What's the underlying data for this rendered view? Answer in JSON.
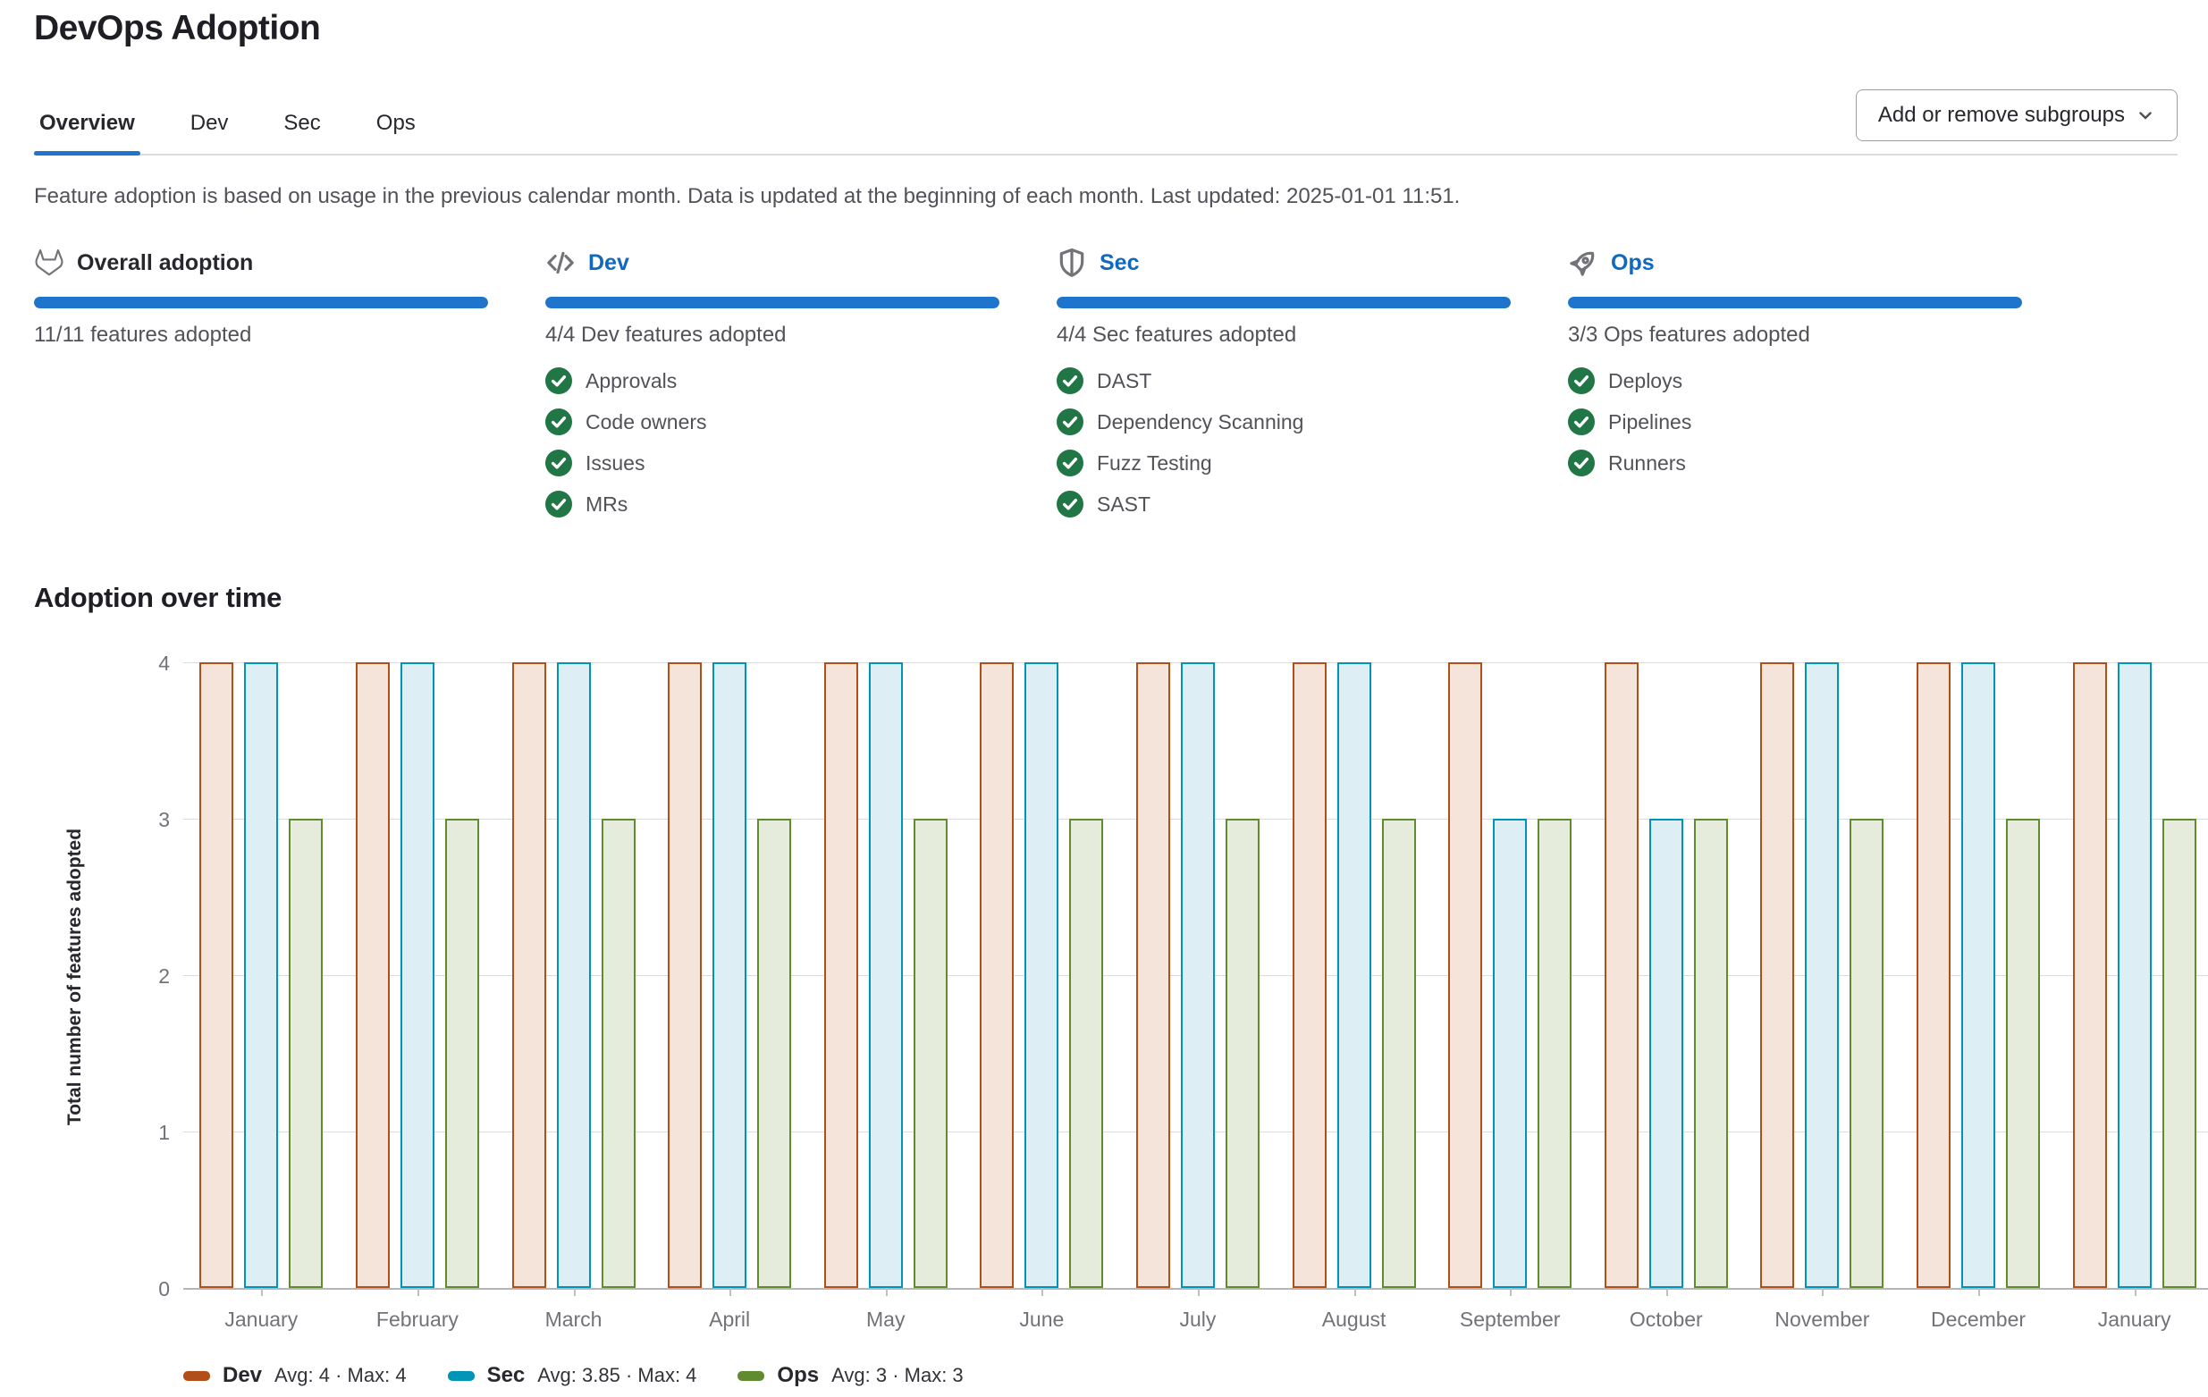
{
  "page": {
    "title": "DevOps Adoption"
  },
  "tabs": [
    {
      "label": "Overview",
      "active": true
    },
    {
      "label": "Dev",
      "active": false
    },
    {
      "label": "Sec",
      "active": false
    },
    {
      "label": "Ops",
      "active": false
    }
  ],
  "toolbar": {
    "subgroups_button_label": "Add or remove subgroups"
  },
  "description": "Feature adoption is based on usage in the previous calendar month. Data is updated at the beginning of each month. Last updated: 2025-01-01 11:51.",
  "colors": {
    "accent_blue": "#1f75cb",
    "link_blue": "#1068bf",
    "success_green": "#217645",
    "icon_gray": "#737278"
  },
  "cards": [
    {
      "id": "overall",
      "icon": "gitlab-tanuki-icon",
      "title": "Overall adoption",
      "title_is_link": false,
      "progress_percent": 100,
      "summary": "11/11 features adopted",
      "features": []
    },
    {
      "id": "dev",
      "icon": "code-icon",
      "title": "Dev",
      "title_is_link": true,
      "progress_percent": 100,
      "summary": "4/4 Dev features adopted",
      "features": [
        "Approvals",
        "Code owners",
        "Issues",
        "MRs"
      ]
    },
    {
      "id": "sec",
      "icon": "shield-icon",
      "title": "Sec",
      "title_is_link": true,
      "progress_percent": 100,
      "summary": "4/4 Sec features adopted",
      "features": [
        "DAST",
        "Dependency Scanning",
        "Fuzz Testing",
        "SAST"
      ]
    },
    {
      "id": "ops",
      "icon": "rocket-icon",
      "title": "Ops",
      "title_is_link": true,
      "progress_percent": 100,
      "summary": "3/3 Ops features adopted",
      "features": [
        "Deploys",
        "Pipelines",
        "Runners"
      ]
    }
  ],
  "section": {
    "title": "Adoption over time"
  },
  "chart_data": {
    "type": "bar",
    "title": "Adoption over time",
    "xlabel": "",
    "ylabel": "Total number of features adopted",
    "ylim": [
      0,
      4
    ],
    "yticks": [
      0,
      1,
      2,
      3,
      4
    ],
    "grid": true,
    "legend_position": "bottom",
    "categories": [
      "January",
      "February",
      "March",
      "April",
      "May",
      "June",
      "July",
      "August",
      "September",
      "October",
      "November",
      "December",
      "January"
    ],
    "series": [
      {
        "name": "Dev",
        "legend_stats": "Avg: 4 · Max: 4",
        "color": "#b14f18",
        "fill": "#f4e4d9",
        "values": [
          4,
          4,
          4,
          4,
          4,
          4,
          4,
          4,
          4,
          4,
          4,
          4,
          4
        ]
      },
      {
        "name": "Sec",
        "legend_stats": "Avg: 3.85 · Max: 4",
        "color": "#0094b6",
        "fill": "#ddeef4",
        "values": [
          4,
          4,
          4,
          4,
          4,
          4,
          4,
          4,
          3,
          3,
          4,
          4,
          4
        ]
      },
      {
        "name": "Ops",
        "legend_stats": "Avg: 3 · Max: 3",
        "color": "#608b2f",
        "fill": "#e5ecdb",
        "values": [
          3,
          3,
          3,
          3,
          3,
          3,
          3,
          3,
          3,
          3,
          3,
          3,
          3
        ]
      }
    ]
  }
}
